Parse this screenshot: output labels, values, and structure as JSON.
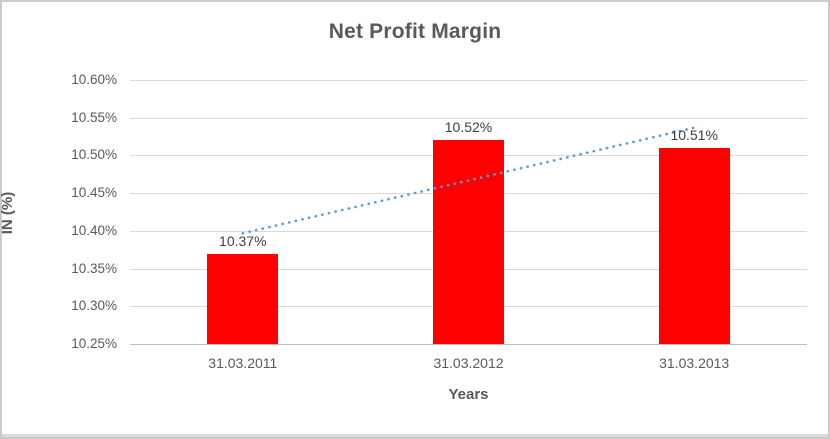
{
  "chart_data": {
    "type": "bar",
    "title": "Net Profit Margin",
    "xlabel": "Years",
    "ylabel": "IN (%)",
    "categories": [
      "31.03.2011",
      "31.03.2012",
      "31.03.2013"
    ],
    "values": [
      10.37,
      10.52,
      10.51
    ],
    "data_labels": [
      "10.37%",
      "10.52%",
      "10.51%"
    ],
    "y_ticks": [
      "10.60%",
      "10.55%",
      "10.50%",
      "10.45%",
      "10.40%",
      "10.35%",
      "10.30%",
      "10.25%"
    ],
    "y_tick_values": [
      10.6,
      10.55,
      10.5,
      10.45,
      10.4,
      10.35,
      10.3,
      10.25
    ],
    "ylim": [
      10.25,
      10.6
    ],
    "grid": true,
    "legend": "none",
    "trendline": {
      "type": "linear",
      "style": "dotted",
      "endpoint_values": [
        10.3967,
        10.5367
      ]
    },
    "colors": {
      "bar": "#FF0000",
      "trendline": "#5B9BD5",
      "title_text": "#595959",
      "axis_text": "#595959",
      "data_label_text": "#404040",
      "gridline": "#D9D9D9",
      "axis_line": "#BFBFBF",
      "background": "#FFFFFF",
      "frame_border": "#CACACA"
    }
  }
}
